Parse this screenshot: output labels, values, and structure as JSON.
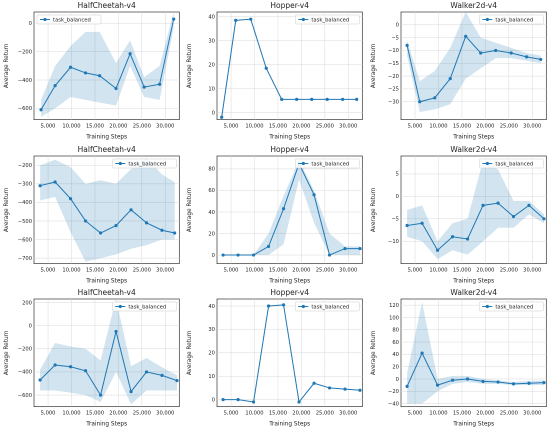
{
  "style": {
    "line_color": "#1f77b4",
    "band_color": "#1f77b4",
    "grid_color": "#d9d9d9"
  },
  "chart_data": [
    {
      "type": "line",
      "title": "HalfCheetah-v4",
      "xlabel": "Training Steps",
      "ylabel": "Average Return",
      "xlim": [
        2000,
        33000
      ],
      "ylim": [
        -680,
        80
      ],
      "xticks": [
        5000,
        10000,
        15000,
        20000,
        25000,
        30000
      ],
      "xtick_labels": [
        "5,000",
        "10,000",
        "15,000",
        "20,000",
        "25,000",
        "30,000"
      ],
      "yticks": [
        -600,
        -400,
        -200,
        0
      ],
      "ytick_labels": [
        "−600",
        "−400",
        "−200",
        "0"
      ],
      "legend": "top-left",
      "grid": true,
      "series": [
        {
          "name": "task_balanced",
          "x": [
            3500,
            6500,
            9800,
            13000,
            16000,
            19500,
            22500,
            25500,
            28800,
            31800
          ],
          "y": [
            -610,
            -440,
            -310,
            -350,
            -370,
            -460,
            -215,
            -450,
            -430,
            30
          ],
          "lower": [
            -660,
            -600,
            -520,
            -540,
            -560,
            -580,
            -300,
            -520,
            -540,
            -30
          ],
          "upper": [
            -540,
            -300,
            -160,
            -60,
            -60,
            -280,
            -120,
            -380,
            -300,
            80
          ]
        }
      ]
    },
    {
      "type": "line",
      "title": "Hopper-v4",
      "xlabel": "Training Steps",
      "ylabel": "Average Return",
      "xlim": [
        2000,
        33000
      ],
      "ylim": [
        -3,
        42
      ],
      "xticks": [
        5000,
        10000,
        15000,
        20000,
        25000,
        30000
      ],
      "xtick_labels": [
        "5,000",
        "10,000",
        "15,000",
        "20,000",
        "25,000",
        "30,000"
      ],
      "yticks": [
        0,
        10,
        20,
        30,
        40
      ],
      "ytick_labels": [
        "0",
        "10",
        "20",
        "30",
        "40"
      ],
      "legend": "top-right",
      "grid": true,
      "series": [
        {
          "name": "task_balanced",
          "x": [
            3000,
            6000,
            9200,
            12500,
            15800,
            19000,
            22200,
            25500,
            28800,
            31800
          ],
          "y": [
            -2,
            38.5,
            39,
            18.5,
            5.5,
            5.5,
            5.5,
            5.5,
            5.5,
            5.5
          ],
          "lower": [],
          "upper": []
        }
      ]
    },
    {
      "type": "line",
      "title": "Walker2d-v4",
      "xlabel": "Training Steps",
      "ylabel": "Average Return",
      "xlim": [
        2000,
        33000
      ],
      "ylim": [
        -37,
        5
      ],
      "xticks": [
        5000,
        10000,
        15000,
        20000,
        25000,
        30000
      ],
      "xtick_labels": [
        "5,000",
        "10,000",
        "15,000",
        "20,000",
        "25,000",
        "30,000"
      ],
      "yticks": [
        -30,
        -25,
        -20,
        -15,
        -10,
        -5,
        0
      ],
      "ytick_labels": [
        "−30",
        "−25",
        "−20",
        "−15",
        "−10",
        "−5",
        "0"
      ],
      "legend": "top-right",
      "grid": true,
      "series": [
        {
          "name": "task_balanced",
          "x": [
            3300,
            6000,
            9200,
            12500,
            15800,
            19000,
            22200,
            25500,
            28800,
            31800
          ],
          "y": [
            -8,
            -30,
            -28.5,
            -21,
            -4.5,
            -11,
            -10,
            -11,
            -12.5,
            -13.5
          ],
          "lower": [
            -12,
            -34,
            -33,
            -31,
            -21,
            -17,
            -13,
            -13,
            -14,
            -15
          ],
          "upper": [
            -6,
            -22,
            -18,
            -9,
            5,
            -5,
            -7,
            -9,
            -11,
            -12
          ]
        }
      ]
    },
    {
      "type": "line",
      "title": "HalfCheetah-v4",
      "xlabel": "Training Steps",
      "ylabel": "Average Return",
      "xlim": [
        2000,
        33000
      ],
      "ylim": [
        -730,
        -150
      ],
      "xticks": [
        5000,
        10000,
        15000,
        20000,
        25000,
        30000
      ],
      "xtick_labels": [
        "5,000",
        "10,000",
        "15,000",
        "20,000",
        "25,000",
        "30,000"
      ],
      "yticks": [
        -700,
        -600,
        -500,
        -400,
        -300,
        -200
      ],
      "ytick_labels": [
        "−700",
        "−600",
        "−500",
        "−400",
        "−300",
        "−200"
      ],
      "legend": "top-right",
      "grid": true,
      "series": [
        {
          "name": "task_balanced",
          "x": [
            3300,
            6500,
            9800,
            13000,
            16200,
            19500,
            22700,
            26000,
            29300,
            32000
          ],
          "y": [
            -310,
            -290,
            -380,
            -500,
            -565,
            -525,
            -440,
            -510,
            -550,
            -565
          ],
          "lower": [
            -390,
            -370,
            -560,
            -720,
            -700,
            -680,
            -650,
            -630,
            -600,
            -600
          ],
          "upper": [
            -200,
            -170,
            -210,
            -300,
            -280,
            -300,
            -220,
            -160,
            -250,
            -290
          ]
        }
      ]
    },
    {
      "type": "line",
      "title": "Hopper-v4",
      "xlabel": "Training Steps",
      "ylabel": "Average Return",
      "xlim": [
        2000,
        33000
      ],
      "ylim": [
        -8,
        92
      ],
      "xticks": [
        5000,
        10000,
        15000,
        20000,
        25000,
        30000
      ],
      "xtick_labels": [
        "5,000",
        "10,000",
        "15,000",
        "20,000",
        "25,000",
        "30,000"
      ],
      "yticks": [
        0,
        20,
        40,
        60,
        80
      ],
      "ytick_labels": [
        "0",
        "20",
        "40",
        "60",
        "80"
      ],
      "legend": "top-right",
      "grid": true,
      "series": [
        {
          "name": "task_balanced",
          "x": [
            3300,
            6500,
            9800,
            13000,
            16200,
            19500,
            22700,
            26000,
            29300,
            32500
          ],
          "y": [
            0,
            0,
            0,
            8,
            43,
            85,
            56,
            0,
            6,
            6
          ],
          "lower": [
            0,
            0,
            0,
            0,
            10,
            70,
            30,
            0,
            0,
            0
          ],
          "upper": [
            0,
            0,
            0,
            20,
            55,
            88,
            60,
            20,
            8,
            8
          ]
        }
      ]
    },
    {
      "type": "line",
      "title": "Walker2d-v4",
      "xlabel": "Training Steps",
      "ylabel": "Average Return",
      "xlim": [
        2000,
        33000
      ],
      "ylim": [
        -15,
        9
      ],
      "xticks": [
        5000,
        10000,
        15000,
        20000,
        25000,
        30000
      ],
      "xtick_labels": [
        "5,000",
        "10,000",
        "15,000",
        "20,000",
        "25,000",
        "30,000"
      ],
      "yticks": [
        -10,
        -5,
        0,
        5
      ],
      "ytick_labels": [
        "−10",
        "−5",
        "0",
        "5"
      ],
      "legend": "top-right",
      "grid": true,
      "series": [
        {
          "name": "task_balanced",
          "x": [
            3300,
            6500,
            9800,
            13000,
            16200,
            19500,
            22700,
            26000,
            29300,
            32500
          ],
          "y": [
            -6.5,
            -6,
            -12,
            -9,
            -9.5,
            -2,
            -1.5,
            -4.5,
            -2,
            -5
          ],
          "lower": [
            -9,
            -10,
            -14,
            -12,
            -13,
            -10,
            -7,
            -7,
            -4,
            -6
          ],
          "upper": [
            -3,
            -2,
            -10,
            -6,
            -5,
            8,
            6,
            -1,
            -1,
            -4
          ]
        }
      ]
    },
    {
      "type": "line",
      "title": "HalfCheetah-v4",
      "xlabel": "Training Steps",
      "ylabel": "Average Return",
      "xlim": [
        2000,
        33000
      ],
      "ylim": [
        -700,
        230
      ],
      "xticks": [
        5000,
        10000,
        15000,
        20000,
        25000,
        30000
      ],
      "xtick_labels": [
        "5,000",
        "10,000",
        "15,000",
        "20,000",
        "25,000",
        "30,000"
      ],
      "yticks": [
        -600,
        -400,
        -200,
        0,
        200
      ],
      "ytick_labels": [
        "−600",
        "−400",
        "−200",
        "0",
        "200"
      ],
      "legend": "top-right",
      "grid": true,
      "series": [
        {
          "name": "task_balanced",
          "x": [
            3300,
            6500,
            9800,
            13000,
            16200,
            19500,
            22700,
            26000,
            29300,
            32500
          ],
          "y": [
            -470,
            -340,
            -355,
            -390,
            -600,
            -50,
            -570,
            -400,
            -430,
            -475
          ],
          "lower": [
            -560,
            -560,
            -580,
            -600,
            -660,
            -400,
            -680,
            -560,
            -560,
            -560
          ],
          "upper": [
            -380,
            -150,
            -180,
            -200,
            -300,
            230,
            -350,
            -280,
            -360,
            -430
          ]
        }
      ]
    },
    {
      "type": "line",
      "title": "Hopper-v4",
      "xlabel": "Training Steps",
      "ylabel": "Average Return",
      "xlim": [
        2000,
        33000
      ],
      "ylim": [
        -3,
        43
      ],
      "xticks": [
        5000,
        10000,
        15000,
        20000,
        25000,
        30000
      ],
      "xtick_labels": [
        "5,000",
        "10,000",
        "15,000",
        "20,000",
        "25,000",
        "30,000"
      ],
      "yticks": [
        0,
        10,
        20,
        30,
        40
      ],
      "ytick_labels": [
        "0",
        "10",
        "20",
        "30",
        "40"
      ],
      "legend": "top-right",
      "grid": true,
      "series": [
        {
          "name": "task_balanced",
          "x": [
            3300,
            6500,
            9800,
            13000,
            16200,
            19500,
            22700,
            26000,
            29300,
            32500
          ],
          "y": [
            0,
            0,
            -1,
            40,
            40.5,
            -1,
            7,
            5,
            4.5,
            4
          ],
          "lower": [],
          "upper": []
        }
      ]
    },
    {
      "type": "line",
      "title": "Walker2d-v4",
      "xlabel": "Training Steps",
      "ylabel": "Average Return",
      "xlim": [
        2000,
        33000
      ],
      "ylim": [
        -45,
        130
      ],
      "xticks": [
        5000,
        10000,
        15000,
        20000,
        25000,
        30000
      ],
      "xtick_labels": [
        "5,000",
        "10,000",
        "15,000",
        "20,000",
        "25,000",
        "30,000"
      ],
      "yticks": [
        -40,
        -20,
        0,
        20,
        40,
        60,
        80,
        100,
        120
      ],
      "ytick_labels": [
        "−40",
        "−20",
        "0",
        "20",
        "40",
        "60",
        "80",
        "100",
        "120"
      ],
      "legend": "top-right",
      "grid": true,
      "series": [
        {
          "name": "task_balanced",
          "x": [
            3300,
            6500,
            9800,
            13000,
            16200,
            19500,
            22700,
            26000,
            29300,
            32500
          ],
          "y": [
            -12,
            42,
            -10,
            -2,
            0,
            -4,
            -5,
            -8,
            -7,
            -6
          ],
          "lower": [
            -40,
            -40,
            -20,
            -8,
            -5,
            -8,
            -8,
            -10,
            -10,
            -10
          ],
          "upper": [
            10,
            125,
            0,
            5,
            5,
            0,
            -2,
            -5,
            -3,
            -2
          ]
        }
      ]
    }
  ]
}
